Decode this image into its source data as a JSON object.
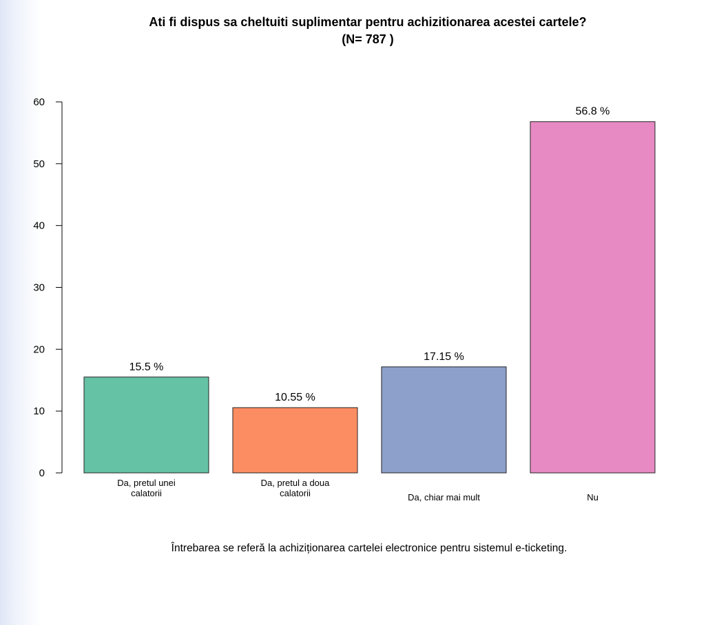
{
  "chart_data": {
    "type": "bar",
    "title_line1": "Ati fi dispus sa cheltuiti suplimentar pentru achizitionarea acestei cartele?",
    "title_line2": "(N= 787 )",
    "categories": [
      [
        "Da, pretul unei",
        "calatorii"
      ],
      [
        "Da, pretul a doua",
        "calatorii"
      ],
      [
        "Da, chiar mai mult"
      ],
      [
        "Nu"
      ]
    ],
    "values": [
      15.5,
      10.55,
      17.15,
      56.8
    ],
    "value_labels": [
      "15.5 %",
      "10.55 %",
      "17.15 %",
      "56.8 %"
    ],
    "colors": [
      "#66c2a5",
      "#fc8d62",
      "#8da0cb",
      "#e78ac3"
    ],
    "ylim": [
      0,
      60
    ],
    "yticks": [
      0,
      10,
      20,
      30,
      40,
      50,
      60
    ],
    "xlabel": "",
    "ylabel": "",
    "grid": false,
    "footnote": "Întrebarea se referă la achiziționarea cartelei electronice pentru sistemul e-ticketing."
  }
}
